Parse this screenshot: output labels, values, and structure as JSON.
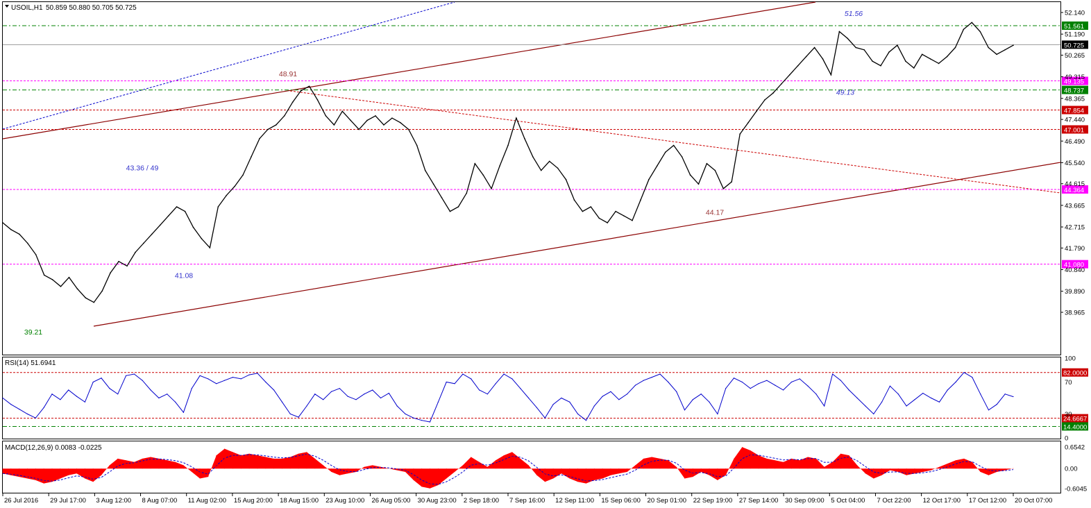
{
  "window": {
    "symbol_label": "USOIL,H1",
    "ohlc_label": "50.859 50.880 50.705 50.725"
  },
  "colors": {
    "price_line": "#000000",
    "rsi_line": "#0000cc",
    "macd_fill": "#ff0000",
    "macd_signal": "#0000cc",
    "support_green": "#008000",
    "level_magenta": "#ff00ff",
    "level_red": "#cc0000",
    "trend_brown": "#8b0000",
    "blue_dotted": "#0000cc"
  },
  "chart_data": [
    {
      "type": "line",
      "panel": "price",
      "series": [
        {
          "name": "USOIL,H1",
          "values": [
            42.9,
            42.6,
            42.4,
            42.0,
            41.5,
            40.6,
            40.4,
            40.1,
            40.5,
            40.0,
            39.6,
            39.4,
            39.9,
            40.7,
            41.2,
            41.0,
            41.6,
            42.0,
            42.4,
            42.8,
            43.2,
            43.6,
            43.4,
            42.7,
            42.2,
            41.8,
            43.6,
            44.1,
            44.5,
            45.0,
            45.8,
            46.6,
            47.0,
            47.2,
            47.6,
            48.2,
            48.7,
            48.9,
            48.3,
            47.6,
            47.2,
            47.8,
            47.4,
            47.0,
            47.4,
            47.6,
            47.2,
            47.5,
            47.3,
            47.0,
            46.3,
            45.2,
            44.6,
            44.0,
            43.4,
            43.6,
            44.2,
            45.5,
            45.0,
            44.4,
            45.4,
            46.3,
            47.5,
            46.6,
            45.8,
            45.2,
            45.6,
            45.3,
            44.8,
            43.9,
            43.4,
            43.6,
            43.1,
            42.9,
            43.4,
            43.2,
            43.0,
            43.9,
            44.8,
            45.4,
            46.0,
            46.3,
            45.8,
            45.0,
            44.6,
            45.5,
            45.2,
            44.4,
            44.7,
            46.8,
            47.3,
            47.8,
            48.3,
            48.6,
            49.0,
            49.4,
            49.8,
            50.2,
            50.6,
            50.1,
            49.4,
            51.3,
            51.0,
            50.6,
            50.5,
            50.0,
            49.8,
            50.4,
            50.7,
            50.0,
            49.7,
            50.3,
            50.1,
            49.9,
            50.2,
            50.6,
            51.4,
            51.7,
            51.3,
            50.6,
            50.3,
            50.5,
            50.7
          ]
        }
      ],
      "x_labels": [
        "26 Jul 2016",
        "29 Jul 17:00",
        "3 Aug 12:00",
        "8 Aug 07:00",
        "11 Aug 02:00",
        "15 Aug 20:00",
        "18 Aug 15:00",
        "23 Aug 10:00",
        "26 Aug 05:00",
        "30 Aug 23:00",
        "2 Sep 18:00",
        "7 Sep 16:00",
        "12 Sep 11:00",
        "15 Sep 06:00",
        "20 Sep 01:00",
        "22 Sep 19:00",
        "27 Sep 14:00",
        "30 Sep 09:00",
        "5 Oct 04:00",
        "7 Oct 22:00",
        "12 Oct 17:00",
        "17 Oct 12:00",
        "20 Oct 07:00"
      ],
      "y_ticks": [
        "52.140",
        "51.190",
        "50.265",
        "49.315",
        "48.365",
        "47.440",
        "46.490",
        "45.540",
        "44.615",
        "43.665",
        "42.715",
        "41.790",
        "40.840",
        "39.890",
        "38.965"
      ],
      "ylim": [
        38.965,
        52.14
      ],
      "levels": [
        {
          "value": 51.561,
          "label": "51.561",
          "color": "#008000"
        },
        {
          "value": 49.135,
          "label": "49.135",
          "color": "#ff00ff"
        },
        {
          "value": 48.737,
          "label": "48.737",
          "color": "#008000"
        },
        {
          "value": 47.854,
          "label": "47.854",
          "color": "#cc0000"
        },
        {
          "value": 47.001,
          "label": "47.001",
          "color": "#cc0000"
        },
        {
          "value": 44.364,
          "label": "44.364",
          "color": "#ff00ff"
        },
        {
          "value": 41.08,
          "label": "41.080",
          "color": "#ff00ff"
        }
      ],
      "current_price": {
        "value": 50.725,
        "label": "50.725"
      },
      "annotations": [
        {
          "text": "51.56",
          "at": 51.56,
          "style": "italic",
          "color": "#3333cc"
        },
        {
          "text": "48.91",
          "at": 48.91,
          "style": "normal",
          "color": "#993333"
        },
        {
          "text": "49.13",
          "at": 49.13,
          "style": "italic",
          "color": "#3333cc"
        },
        {
          "text": "43.36 / 49",
          "at": 45.2,
          "style": "normal",
          "color": "#3333cc"
        },
        {
          "text": "44.17",
          "at": 44.17,
          "style": "normal",
          "color": "#993333"
        },
        {
          "text": "41.08",
          "at": 41.08,
          "style": "normal",
          "color": "#3333cc"
        },
        {
          "text": "39.21",
          "at": 39.21,
          "style": "normal",
          "color": "#008000"
        }
      ],
      "grid": false
    },
    {
      "type": "line",
      "panel": "rsi",
      "header": "RSI(14) 51.6941",
      "series": [
        {
          "name": "RSI(14)",
          "values": [
            50,
            42,
            36,
            30,
            25,
            38,
            55,
            48,
            60,
            52,
            45,
            70,
            75,
            62,
            55,
            78,
            80,
            72,
            60,
            50,
            55,
            45,
            32,
            62,
            78,
            74,
            68,
            72,
            76,
            74,
            79,
            81,
            70,
            60,
            45,
            30,
            26,
            40,
            55,
            48,
            58,
            62,
            52,
            48,
            55,
            60,
            50,
            56,
            40,
            30,
            25,
            22,
            20,
            45,
            70,
            68,
            80,
            74,
            60,
            55,
            68,
            80,
            74,
            62,
            50,
            38,
            25,
            42,
            50,
            45,
            30,
            22,
            40,
            52,
            58,
            48,
            55,
            66,
            72,
            76,
            80,
            70,
            58,
            35,
            48,
            55,
            45,
            30,
            62,
            75,
            70,
            62,
            68,
            72,
            66,
            60,
            70,
            74,
            65,
            55,
            40,
            80,
            72,
            60,
            50,
            40,
            30,
            45,
            65,
            55,
            40,
            48,
            56,
            50,
            45,
            60,
            70,
            82,
            76,
            55,
            35,
            42,
            55,
            51.69
          ]
        }
      ],
      "ylim": [
        0,
        100
      ],
      "y_ticks": [
        "100",
        "70",
        "30",
        "0"
      ],
      "levels": [
        {
          "value": 82,
          "label": "82.0000",
          "color": "#cc0000"
        },
        {
          "value": 24.6667,
          "label": "24.6667",
          "color": "#cc0000"
        },
        {
          "value": 14.4,
          "label": "14.4000",
          "color": "#008000"
        }
      ]
    },
    {
      "type": "area",
      "panel": "macd",
      "header": "MACD(12,26,9) 0.0083 -0.0225",
      "series": [
        {
          "name": "MACD",
          "values": [
            -0.15,
            -0.2,
            -0.25,
            -0.3,
            -0.35,
            -0.45,
            -0.4,
            -0.3,
            -0.2,
            -0.15,
            -0.3,
            -0.4,
            -0.2,
            0.1,
            0.3,
            0.25,
            0.2,
            0.3,
            0.35,
            0.3,
            0.25,
            0.2,
            0.1,
            -0.1,
            -0.3,
            -0.25,
            0.4,
            0.6,
            0.5,
            0.4,
            0.45,
            0.4,
            0.35,
            0.3,
            0.3,
            0.35,
            0.45,
            0.5,
            0.3,
            0.1,
            -0.1,
            -0.2,
            -0.15,
            -0.1,
            0.05,
            0.1,
            0.05,
            0.0,
            -0.05,
            -0.1,
            -0.35,
            -0.55,
            -0.6,
            -0.5,
            -0.3,
            -0.1,
            0.1,
            0.35,
            0.2,
            0.05,
            0.25,
            0.4,
            0.5,
            0.3,
            0.1,
            -0.2,
            -0.4,
            -0.3,
            -0.15,
            -0.3,
            -0.4,
            -0.45,
            -0.35,
            -0.3,
            -0.2,
            -0.15,
            -0.1,
            0.1,
            0.3,
            0.35,
            0.3,
            0.25,
            0.05,
            -0.3,
            -0.25,
            -0.1,
            -0.2,
            -0.35,
            -0.2,
            0.3,
            0.65,
            0.55,
            0.4,
            0.3,
            0.25,
            0.2,
            0.3,
            0.25,
            0.35,
            0.3,
            0.05,
            0.2,
            0.45,
            0.4,
            0.1,
            -0.15,
            -0.3,
            -0.2,
            -0.05,
            -0.1,
            -0.2,
            -0.15,
            -0.1,
            -0.05,
            0.05,
            0.15,
            0.25,
            0.3,
            0.2,
            -0.1,
            -0.2,
            -0.1,
            -0.05,
            0.01
          ]
        }
      ],
      "ylim": [
        -0.6045,
        0.6542
      ],
      "y_ticks": [
        "0.6542",
        "0.00",
        "-0.6045"
      ]
    }
  ]
}
